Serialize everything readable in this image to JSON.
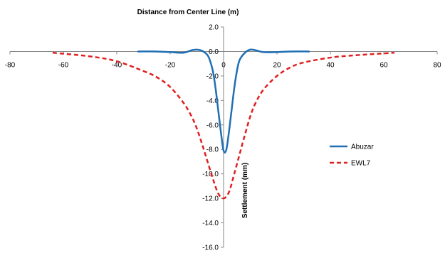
{
  "chart_data": {
    "type": "line",
    "title": "Distance from Center Line (m)",
    "xlabel": "Distance from Center Line (m)",
    "ylabel": "Settlement (mm)",
    "xlim": [
      -80,
      80
    ],
    "ylim": [
      -16,
      2
    ],
    "x_ticks": [
      "-80",
      "-60",
      "-40",
      "-20",
      "0",
      "20",
      "40",
      "60",
      "80"
    ],
    "x_tick_values": [
      -80,
      -60,
      -40,
      -20,
      0,
      20,
      40,
      60,
      80
    ],
    "y_ticks": [
      "2.0",
      "0.0",
      "-2.0",
      "-4.0",
      "-6.0",
      "-8.0",
      "-10.0",
      "-12.0",
      "-14.0",
      "-16.0"
    ],
    "y_tick_values": [
      2,
      0,
      -2,
      -4,
      -6,
      -8,
      -10,
      -12,
      -14,
      -16
    ],
    "grid": false,
    "legend_position": "right",
    "series": [
      {
        "name": "Abuzar",
        "color": "#1f6fb5",
        "style": "solid",
        "x": [
          -32,
          -25,
          -20,
          -15,
          -12,
          -10,
          -8,
          -6,
          -5,
          -4,
          -3,
          -2,
          -1,
          0,
          1,
          2,
          3,
          4,
          5,
          6,
          8,
          10,
          12,
          15,
          20,
          25,
          32
        ],
        "y": [
          0,
          0,
          -0.05,
          -0.1,
          0.1,
          0.15,
          0.05,
          -0.3,
          -0.8,
          -1.6,
          -3.0,
          -4.8,
          -6.6,
          -8.1,
          -8.05,
          -6.6,
          -4.8,
          -3.0,
          -1.6,
          -0.7,
          -0.1,
          0.15,
          0.1,
          -0.05,
          -0.05,
          0,
          0
        ]
      },
      {
        "name": "EWL7",
        "color": "#e02020",
        "style": "dashed",
        "x": [
          -64,
          -50,
          -40,
          -30,
          -25,
          -20,
          -15,
          -12,
          -10,
          -8,
          -6,
          -4,
          -2,
          0,
          2,
          4,
          6,
          8,
          10,
          12,
          15,
          20,
          25,
          30,
          40,
          50,
          64
        ],
        "y": [
          -0.1,
          -0.4,
          -0.8,
          -1.6,
          -2.1,
          -2.9,
          -4.2,
          -5.3,
          -6.3,
          -7.6,
          -9.0,
          -10.4,
          -11.6,
          -12.0,
          -11.5,
          -10.0,
          -8.4,
          -6.8,
          -5.3,
          -4.2,
          -3.1,
          -2.0,
          -1.3,
          -0.9,
          -0.5,
          -0.3,
          -0.1
        ]
      }
    ]
  }
}
